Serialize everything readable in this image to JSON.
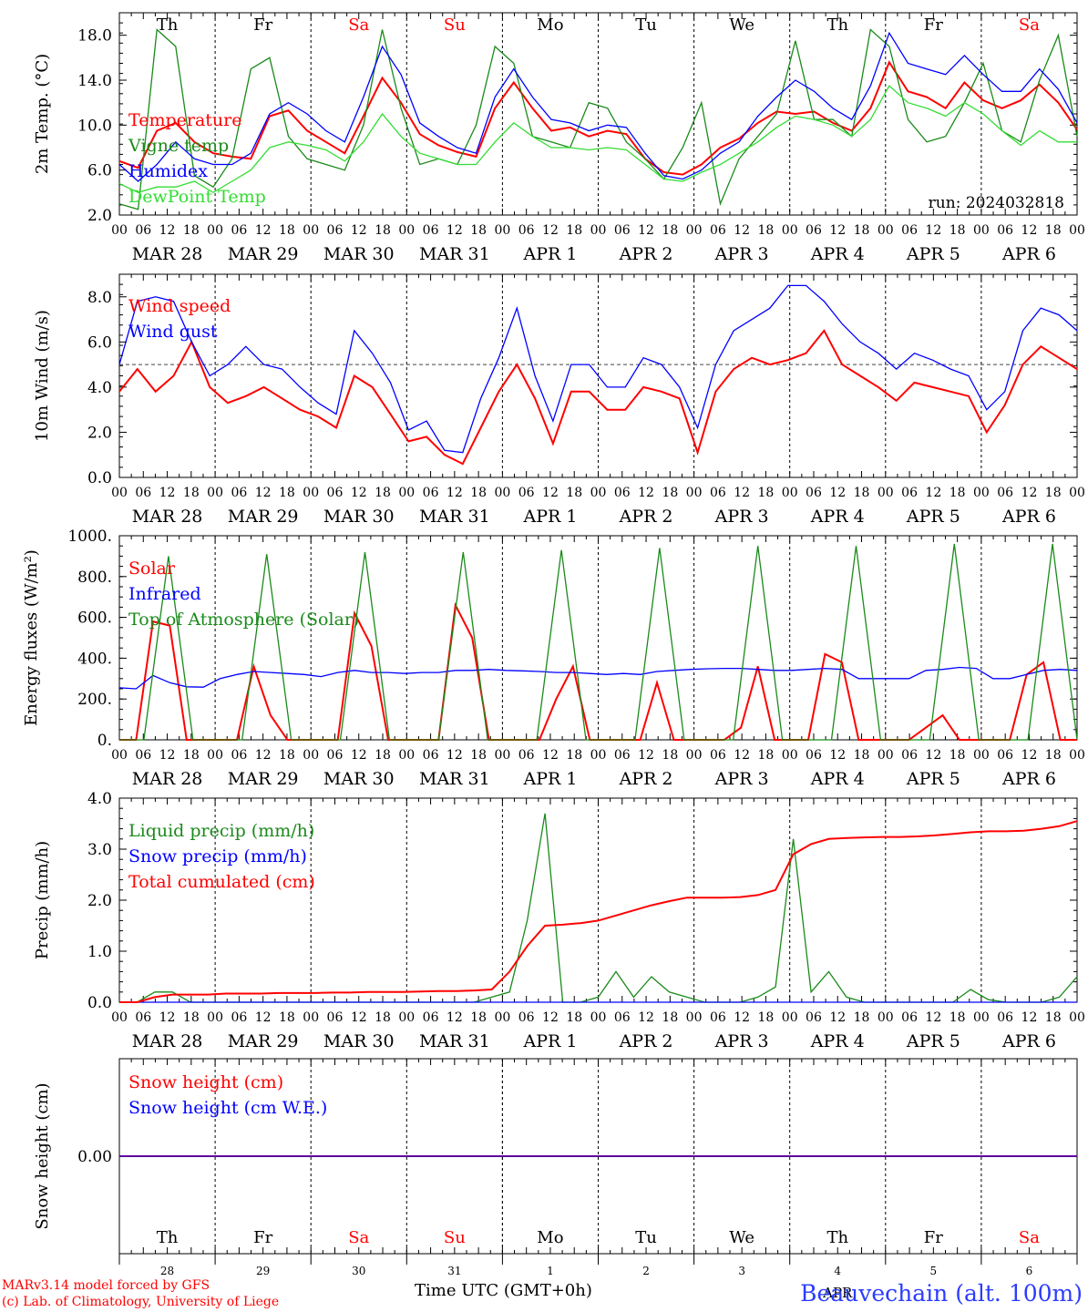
{
  "footer": {
    "model_credit": "MARv3.14 model forced by GFS",
    "lab_credit": "(c) Lab. of Climatology, University of Liege",
    "time_label": "Time UTC (GMT+0h)",
    "station": "Beauvechain (alt. 100m)"
  },
  "colors": {
    "red": "#ff0000",
    "green": "#1a8a1a",
    "blue": "#0000ff",
    "light_green": "#33dd33",
    "weekend": "#ff0000",
    "frame": "#000000"
  },
  "hour_labels": [
    "00",
    "06",
    "12",
    "18"
  ],
  "date_labels": [
    "MAR 28",
    "MAR 29",
    "MAR 30",
    "MAR 31",
    "APR  1",
    "APR  2",
    "APR  3",
    "APR  4",
    "APR  5",
    "APR  6"
  ],
  "day_names": [
    {
      "name": "Th",
      "weekend": false
    },
    {
      "name": "Fr",
      "weekend": false
    },
    {
      "name": "Sa",
      "weekend": true
    },
    {
      "name": "Su",
      "weekend": true
    },
    {
      "name": "Mo",
      "weekend": false
    },
    {
      "name": "Tu",
      "weekend": false
    },
    {
      "name": "We",
      "weekend": false
    },
    {
      "name": "Th",
      "weekend": false
    },
    {
      "name": "Fr",
      "weekend": false
    },
    {
      "name": "Sa",
      "weekend": true
    }
  ],
  "bottom_day_numbers": [
    "28",
    "29",
    "30",
    "31",
    "1",
    "2",
    "3",
    "4",
    "5",
    "6"
  ],
  "bottom_month": "APR",
  "chart_data": [
    {
      "type": "line",
      "ylabel": "2m Temp. (°C)",
      "ylim": [
        2,
        20
      ],
      "yticks": [
        "2.0",
        "6.0",
        "10.0",
        "14.0",
        "18.0"
      ],
      "annotation": "run: 2024032818",
      "show_top_days": true,
      "x_hours_start": 0,
      "x_hours_end": 240,
      "step_hours": 6,
      "series": [
        {
          "name": "Temperature",
          "color": "red",
          "values": [
            6.8,
            6.2,
            9.5,
            10.2,
            8.5,
            7.5,
            7.2,
            7.0,
            10.8,
            11.3,
            9.5,
            8.5,
            7.5,
            10.8,
            14.2,
            12.0,
            9.2,
            8.2,
            7.6,
            7.2,
            11.5,
            13.8,
            11.5,
            9.5,
            9.8,
            9.0,
            9.5,
            9.2,
            7.0,
            5.8,
            5.6,
            6.5,
            8.0,
            8.8,
            10.2,
            11.2,
            11.0,
            11.2,
            10.2,
            9.5,
            11.5,
            15.6,
            13.0,
            12.5,
            11.5,
            13.8,
            12.2,
            11.5,
            12.2,
            13.6,
            12.0,
            9.6
          ]
        },
        {
          "name": "Vigne temp",
          "color": "green",
          "values": [
            3.0,
            2.5,
            18.5,
            17.0,
            5.5,
            4.5,
            7.0,
            15.0,
            16.0,
            9.0,
            7.0,
            6.5,
            6.0,
            10.0,
            18.5,
            11.5,
            6.5,
            7.0,
            6.5,
            10.0,
            17.0,
            15.5,
            9.0,
            8.5,
            8.0,
            12.0,
            11.5,
            8.5,
            7.0,
            5.2,
            8.0,
            12.0,
            3.0,
            7.0,
            9.0,
            11.0,
            17.5,
            10.5,
            10.5,
            9.0,
            18.5,
            17.0,
            10.5,
            8.5,
            9.0,
            12.0,
            15.5,
            9.5,
            8.5,
            14.0,
            18.0,
            9.0
          ]
        },
        {
          "name": "Humidex",
          "color": "blue",
          "values": [
            6.5,
            5.0,
            6.5,
            8.5,
            7.0,
            6.5,
            6.5,
            7.5,
            11.0,
            12.0,
            11.0,
            9.5,
            8.5,
            12.5,
            17.0,
            14.5,
            10.2,
            9.0,
            8.0,
            7.5,
            12.5,
            15.0,
            12.5,
            10.5,
            10.2,
            9.5,
            10.0,
            9.8,
            7.5,
            5.5,
            5.2,
            6.0,
            7.5,
            8.5,
            10.8,
            12.5,
            14.0,
            13.0,
            11.5,
            10.5,
            13.5,
            18.2,
            15.5,
            15.0,
            14.5,
            16.2,
            14.5,
            13.0,
            13.0,
            15.0,
            13.2,
            10.2
          ]
        },
        {
          "name": "DewPoint Temp",
          "color": "light_green",
          "values": [
            4.8,
            4.0,
            4.5,
            4.5,
            5.0,
            4.0,
            5.0,
            6.0,
            8.0,
            8.5,
            8.2,
            7.8,
            6.8,
            8.5,
            11.0,
            9.0,
            7.5,
            7.0,
            6.5,
            6.5,
            8.5,
            10.2,
            9.0,
            8.0,
            8.0,
            7.8,
            8.0,
            7.8,
            6.5,
            5.2,
            5.0,
            5.8,
            6.5,
            7.5,
            8.5,
            9.8,
            10.8,
            10.5,
            10.0,
            9.0,
            10.5,
            13.5,
            12.0,
            11.5,
            10.8,
            12.0,
            11.0,
            9.5,
            8.2,
            9.5,
            8.5,
            8.5
          ]
        }
      ]
    },
    {
      "type": "line",
      "ylabel": "10m Wind (m/s)",
      "ylim": [
        0,
        9
      ],
      "yticks": [
        "0.0",
        "2.0",
        "4.0",
        "6.0",
        "8.0"
      ],
      "reference_line": 5,
      "x_hours_start": 0,
      "x_hours_end": 240,
      "step_hours": 6,
      "series": [
        {
          "name": "Wind speed",
          "color": "red",
          "values": [
            3.8,
            4.8,
            3.8,
            4.5,
            6.0,
            4.0,
            3.3,
            3.6,
            4.0,
            3.5,
            3.0,
            2.7,
            2.2,
            4.5,
            4.0,
            2.8,
            1.6,
            1.8,
            1.0,
            0.6,
            2.2,
            3.8,
            5.0,
            3.5,
            1.5,
            3.8,
            3.8,
            3.0,
            3.0,
            4.0,
            3.8,
            3.5,
            1.1,
            3.8,
            4.8,
            5.3,
            5.0,
            5.2,
            5.5,
            6.5,
            5.0,
            4.5,
            4.0,
            3.4,
            4.2,
            4.0,
            3.8,
            3.6,
            2.0,
            3.2,
            5.0,
            5.8,
            5.3,
            4.8
          ]
        },
        {
          "name": "Wind gust",
          "color": "blue",
          "values": [
            5.0,
            7.8,
            8.0,
            7.8,
            6.0,
            4.5,
            5.0,
            5.8,
            5.0,
            4.8,
            4.0,
            3.3,
            2.8,
            6.5,
            5.5,
            4.2,
            2.1,
            2.5,
            1.2,
            1.1,
            3.5,
            5.3,
            7.5,
            4.5,
            2.5,
            5.0,
            5.0,
            4.0,
            4.0,
            5.3,
            5.0,
            4.0,
            2.2,
            5.0,
            6.5,
            7.0,
            7.5,
            8.5,
            8.5,
            7.8,
            6.8,
            6.0,
            5.5,
            4.8,
            5.5,
            5.2,
            4.8,
            4.5,
            3.0,
            3.8,
            6.5,
            7.5,
            7.2,
            6.5
          ]
        }
      ]
    },
    {
      "type": "line",
      "ylabel": "Energy fluxes (W/m²)",
      "ylim": [
        0,
        1000
      ],
      "yticks": [
        "0.",
        "200.",
        "400.",
        "600.",
        "800.",
        "1000."
      ],
      "x_hours_start": 0,
      "x_hours_end": 240,
      "step_hours": 6,
      "series": [
        {
          "name": "Solar",
          "color": "red",
          "values": [
            0,
            0,
            580,
            560,
            0,
            0,
            0,
            0,
            360,
            120,
            0,
            0,
            0,
            0,
            620,
            460,
            0,
            0,
            0,
            0,
            660,
            500,
            0,
            0,
            0,
            0,
            200,
            360,
            0,
            0,
            0,
            0,
            280,
            0,
            0,
            0,
            0,
            60,
            360,
            0,
            0,
            0,
            420,
            380,
            0,
            0,
            0,
            0,
            60,
            120,
            0,
            0,
            0,
            0,
            320,
            380,
            0,
            0
          ]
        },
        {
          "name": "Infrared",
          "color": "blue",
          "values": [
            255,
            250,
            315,
            280,
            260,
            258,
            300,
            320,
            335,
            330,
            325,
            320,
            310,
            330,
            340,
            330,
            330,
            325,
            330,
            330,
            340,
            340,
            345,
            340,
            338,
            335,
            330,
            330,
            325,
            320,
            325,
            320,
            335,
            340,
            345,
            348,
            350,
            350,
            345,
            340,
            340,
            345,
            350,
            345,
            300,
            300,
            300,
            300,
            340,
            345,
            355,
            350,
            300,
            300,
            320,
            340,
            345,
            340
          ]
        },
        {
          "name": "Top of Atmosphere (Solar)",
          "color": "green",
          "values": [
            0,
            0,
            900,
            0,
            0,
            0,
            910,
            0,
            0,
            0,
            920,
            0,
            0,
            0,
            920,
            0,
            0,
            0,
            930,
            0,
            0,
            0,
            940,
            0,
            0,
            0,
            950,
            0,
            0,
            0,
            950,
            0,
            0,
            0,
            960,
            0,
            0,
            0,
            960,
            0
          ]
        }
      ]
    },
    {
      "type": "line",
      "ylabel": "Precip (mm/h)",
      "ylim": [
        0,
        4
      ],
      "yticks": [
        "0.0",
        "1.0",
        "2.0",
        "3.0",
        "4.0"
      ],
      "x_hours_start": 0,
      "x_hours_end": 240,
      "step_hours": 6,
      "series": [
        {
          "name": "Liquid precip (mm/h)",
          "color": "green",
          "values": [
            0.0,
            0.0,
            0.2,
            0.2,
            0.0,
            0.0,
            0.0,
            0.0,
            0.0,
            0.0,
            0.0,
            0.0,
            0.0,
            0.0,
            0.0,
            0.0,
            0.0,
            0.0,
            0.0,
            0.0,
            0.0,
            0.1,
            0.2,
            1.6,
            3.7,
            0.0,
            0.0,
            0.1,
            0.6,
            0.1,
            0.5,
            0.2,
            0.1,
            0.0,
            0.0,
            0.0,
            0.1,
            0.3,
            3.2,
            0.2,
            0.6,
            0.1,
            0.0,
            0.0,
            0.0,
            0.0,
            0.0,
            0.0,
            0.25,
            0.05,
            0.0,
            0.0,
            0.0,
            0.1,
            0.5
          ]
        },
        {
          "name": "Snow precip (mm/h)",
          "color": "blue",
          "values": [
            0,
            0,
            0,
            0,
            0,
            0,
            0,
            0,
            0,
            0,
            0,
            0,
            0,
            0,
            0,
            0,
            0,
            0,
            0,
            0,
            0,
            0,
            0,
            0,
            0,
            0,
            0,
            0,
            0,
            0,
            0,
            0,
            0,
            0,
            0,
            0,
            0,
            0,
            0,
            0,
            0,
            0,
            0,
            0,
            0,
            0,
            0,
            0,
            0,
            0,
            0,
            0,
            0,
            0,
            0
          ]
        },
        {
          "name": "Total cumulated (cm)",
          "color": "red",
          "values": [
            0.0,
            0.0,
            0.1,
            0.15,
            0.15,
            0.15,
            0.17,
            0.17,
            0.17,
            0.18,
            0.18,
            0.18,
            0.19,
            0.19,
            0.2,
            0.2,
            0.2,
            0.21,
            0.22,
            0.22,
            0.23,
            0.25,
            0.6,
            1.1,
            1.5,
            1.52,
            1.55,
            1.6,
            1.7,
            1.8,
            1.9,
            1.98,
            2.05,
            2.05,
            2.05,
            2.06,
            2.1,
            2.2,
            2.9,
            3.1,
            3.2,
            3.22,
            3.23,
            3.24,
            3.24,
            3.25,
            3.27,
            3.3,
            3.33,
            3.35,
            3.35,
            3.36,
            3.4,
            3.45,
            3.55
          ]
        }
      ]
    },
    {
      "type": "line",
      "ylabel": "Snow height (cm)",
      "ylim": [
        -1,
        1
      ],
      "yticks": [
        "0.00"
      ],
      "x_hours_start": 0,
      "x_hours_end": 240,
      "step_hours": 6,
      "series": [
        {
          "name": "Snow height (cm)",
          "color": "red",
          "values": [
            0,
            0
          ]
        },
        {
          "name": "Snow height (cm W.E.)",
          "color": "blue",
          "values": [
            0,
            0
          ]
        }
      ]
    }
  ]
}
